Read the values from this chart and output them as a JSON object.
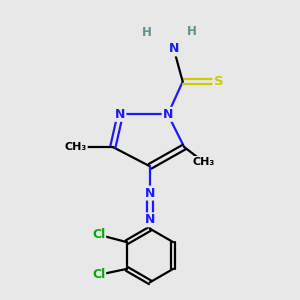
{
  "background_color": "#e8e8e8",
  "figsize": [
    3.0,
    3.0
  ],
  "dpi": 100,
  "colors": {
    "N": "#1a1aff",
    "S": "#cccc00",
    "Cl": "#00aa00",
    "C": "#000000",
    "H": "#5f9090",
    "bg": "#e8e8e8"
  },
  "bond_width": 1.6
}
